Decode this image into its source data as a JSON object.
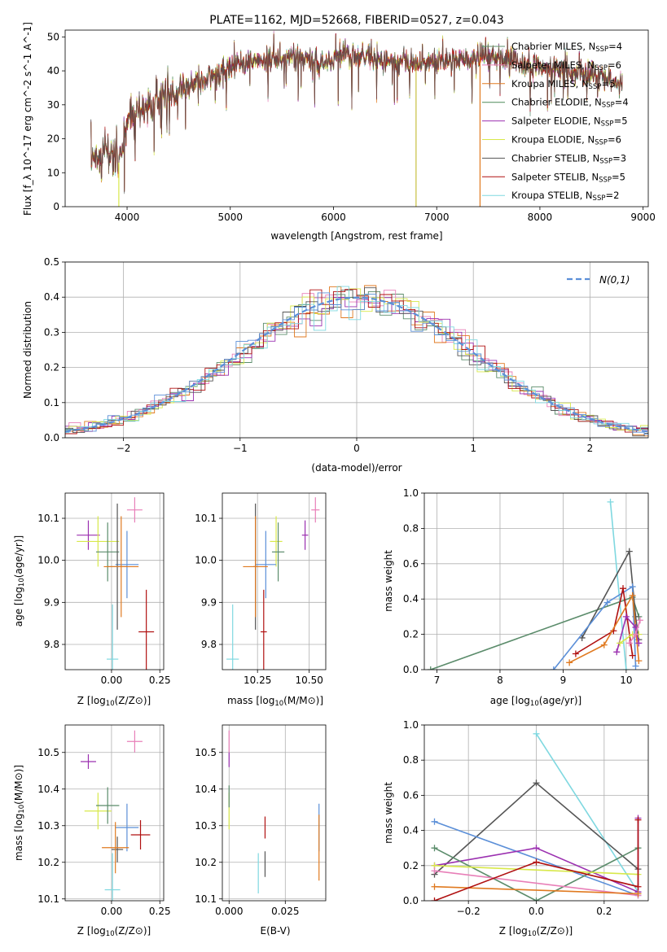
{
  "chart_data": [
    {
      "type": "line",
      "title": "PLATE=1162, MJD=52668, FIBERID=0527, z=0.043",
      "xlabel": "wavelength [Angstrom, rest frame]",
      "ylabel": "Flux [f_λ 10^-17 erg cm^-2 s^-1 A^-1]",
      "xlim": [
        3400,
        9050
      ],
      "ylim": [
        0,
        52
      ],
      "xticks": [
        4000,
        5000,
        6000,
        7000,
        8000,
        9000
      ],
      "yticks": [
        0,
        10,
        20,
        30,
        40,
        50
      ],
      "legend": "top-right",
      "continuum": {
        "x": [
          3650,
          3800,
          3920,
          4000,
          4100,
          4300,
          4500,
          4700,
          4900,
          5100,
          5300,
          5500,
          5700,
          5900,
          6100,
          6300,
          6500,
          6700,
          6900,
          7100,
          7300,
          7500,
          7700,
          7900,
          8100,
          8300,
          8500,
          8800
        ],
        "y": [
          14,
          17,
          13,
          25,
          28,
          31,
          34,
          37,
          39,
          42,
          43,
          44,
          44,
          42,
          45,
          44,
          43,
          42,
          42,
          43,
          43,
          45,
          43,
          42,
          41,
          40,
          39,
          36
        ]
      },
      "series": [
        {
          "name": "Chabrier MILES, N_SSP=4",
          "color": "#5b8c6b"
        },
        {
          "name": "Salpeter MILES, N_SSP=6",
          "color": "#e87fb8"
        },
        {
          "name": "Kroupa MILES, N_SSP=5",
          "color": "#e07a20"
        },
        {
          "name": "Chabrier ELODIE, N_SSP=4",
          "color": "#4f8a58"
        },
        {
          "name": "Salpeter ELODIE, N_SSP=5",
          "color": "#9b30b0"
        },
        {
          "name": "Kroupa ELODIE, N_SSP=6",
          "color": "#d8e84a"
        },
        {
          "name": "Chabrier STELIB, N_SSP=3",
          "color": "#555555"
        },
        {
          "name": "Salpeter STELIB, N_SSP=5",
          "color": "#b01010"
        },
        {
          "name": "Kroupa STELIB, N_SSP=2",
          "color": "#7fd8e0"
        }
      ],
      "dropouts": [
        {
          "x": 3920,
          "color": "#d8e84a"
        },
        {
          "x": 6800,
          "color": "#c8c040"
        },
        {
          "x": 7420,
          "color": "#e07a20"
        }
      ]
    },
    {
      "type": "histogram",
      "xlabel": "(data-model)/error",
      "ylabel": "Normed distribution",
      "xlim": [
        -2.5,
        2.5
      ],
      "ylim": [
        0,
        0.5
      ],
      "xticks": [
        -2,
        -1,
        0,
        1,
        2
      ],
      "yticks": [
        0.0,
        0.1,
        0.2,
        0.3,
        0.4,
        0.5
      ],
      "grid": true,
      "bin_width": 0.1,
      "reference_curve": {
        "label": "N(0,1)",
        "color": "#5b8fd8",
        "style": "dashed"
      },
      "legend": "top-right",
      "series_colors": [
        "#5b8c6b",
        "#e87fb8",
        "#e07a20",
        "#9b30b0",
        "#d8e84a",
        "#555555",
        "#b01010",
        "#7fd8e0",
        "#5b8fd8"
      ]
    },
    {
      "type": "scatter",
      "xlabel": "Z [log10(Z/Z⊙)]",
      "ylabel": "age  [log10(age/yr)]",
      "xlim": [
        -0.24,
        0.27
      ],
      "ylim": [
        9.74,
        10.16
      ],
      "xticks": [
        0.0,
        0.25
      ],
      "xticklabels": [
        "0.00",
        "0.25"
      ],
      "yticks": [
        9.8,
        9.9,
        10.0,
        10.1
      ],
      "grid": true,
      "points": [
        {
          "x": 0.12,
          "y": 10.12,
          "xerr": 0.04,
          "yerr": 0.03,
          "color": "#e87fb8"
        },
        {
          "x": -0.12,
          "y": 10.06,
          "xerr": 0.06,
          "yerr": 0.035,
          "color": "#9b30b0"
        },
        {
          "x": -0.07,
          "y": 10.045,
          "xerr": 0.11,
          "yerr": 0.06,
          "color": "#d8e84a"
        },
        {
          "x": -0.02,
          "y": 10.02,
          "xerr": 0.06,
          "yerr": 0.07,
          "color": "#5b8c6b"
        },
        {
          "x": 0.08,
          "y": 9.99,
          "xerr": 0.06,
          "yerr": 0.08,
          "color": "#5b8fd8"
        },
        {
          "x": 0.03,
          "y": 9.985,
          "xerr": 0.05,
          "yerr": 0.15,
          "color": "#555555"
        },
        {
          "x": 0.05,
          "y": 9.985,
          "xerr": 0.09,
          "yerr": 0.12,
          "color": "#e07a20"
        },
        {
          "x": 0.18,
          "y": 9.83,
          "xerr": 0.04,
          "yerr": 0.1,
          "color": "#b01010"
        },
        {
          "x": 0.005,
          "y": 9.765,
          "xerr": 0.03,
          "yerr": 0.13,
          "color": "#7fd8e0"
        }
      ]
    },
    {
      "type": "scatter",
      "xlabel": "mass [log10(M/M⊙)]",
      "ylabel": "",
      "xlim": [
        10.08,
        10.58
      ],
      "ylim": [
        9.74,
        10.16
      ],
      "xticks": [
        10.25,
        10.5
      ],
      "xticklabels": [
        "10.25",
        "10.50"
      ],
      "yticks": [
        9.8,
        9.9,
        10.0,
        10.1
      ],
      "grid": true,
      "points": [
        {
          "x": 10.53,
          "y": 10.12,
          "xerr": 0.02,
          "yerr": 0.03,
          "color": "#e87fb8"
        },
        {
          "x": 10.48,
          "y": 10.06,
          "xerr": 0.015,
          "yerr": 0.035,
          "color": "#9b30b0"
        },
        {
          "x": 10.34,
          "y": 10.045,
          "xerr": 0.03,
          "yerr": 0.06,
          "color": "#d8e84a"
        },
        {
          "x": 10.35,
          "y": 10.02,
          "xerr": 0.03,
          "yerr": 0.07,
          "color": "#5b8c6b"
        },
        {
          "x": 10.29,
          "y": 9.99,
          "xerr": 0.05,
          "yerr": 0.08,
          "color": "#5b8fd8"
        },
        {
          "x": 10.24,
          "y": 9.985,
          "xerr": 0.01,
          "yerr": 0.15,
          "color": "#555555"
        },
        {
          "x": 10.24,
          "y": 9.985,
          "xerr": 0.06,
          "yerr": 0.12,
          "color": "#e07a20"
        },
        {
          "x": 10.28,
          "y": 9.83,
          "xerr": 0.015,
          "yerr": 0.1,
          "color": "#b01010"
        },
        {
          "x": 10.13,
          "y": 9.765,
          "xerr": 0.03,
          "yerr": 0.13,
          "color": "#7fd8e0"
        }
      ]
    },
    {
      "type": "line",
      "xlabel": "age  [log10(age/yr)]",
      "ylabel": "mass weight",
      "xlim": [
        6.8,
        10.35
      ],
      "ylim": [
        0,
        1.0
      ],
      "xticks": [
        7,
        8,
        9,
        10
      ],
      "yticks": [
        0.0,
        0.2,
        0.4,
        0.6,
        0.8,
        1.0
      ],
      "grid": true,
      "series": [
        {
          "color": "#5b8c6b",
          "x": [
            6.9,
            10.1,
            10.2
          ],
          "y": [
            0.0,
            0.41,
            0.3
          ]
        },
        {
          "color": "#7fd8e0",
          "x": [
            10.0,
            9.75
          ],
          "y": [
            0.0,
            0.95
          ]
        },
        {
          "color": "#555555",
          "x": [
            9.3,
            10.05,
            10.15,
            10.2
          ],
          "y": [
            0.18,
            0.67,
            0.3,
            0.17
          ]
        },
        {
          "color": "#5b8fd8",
          "x": [
            8.85,
            9.7,
            10.1,
            10.15
          ],
          "y": [
            0.0,
            0.38,
            0.47,
            0.02
          ]
        },
        {
          "color": "#b01010",
          "x": [
            9.2,
            9.8,
            9.95,
            10.1
          ],
          "y": [
            0.09,
            0.22,
            0.46,
            0.08
          ]
        },
        {
          "color": "#e07a20",
          "x": [
            9.1,
            9.65,
            10.1,
            10.2
          ],
          "y": [
            0.04,
            0.14,
            0.42,
            0.05
          ]
        },
        {
          "color": "#9b30b0",
          "x": [
            9.85,
            10.0,
            10.15,
            10.2
          ],
          "y": [
            0.1,
            0.3,
            0.24,
            0.15
          ]
        },
        {
          "color": "#d8e84a",
          "x": [
            9.9,
            10.1,
            10.2
          ],
          "y": [
            0.15,
            0.2,
            0.2
          ]
        },
        {
          "color": "#e87fb8",
          "x": [
            10.05,
            10.15,
            10.22
          ],
          "y": [
            0.15,
            0.2,
            0.28
          ]
        }
      ]
    },
    {
      "type": "scatter",
      "xlabel": "Z [log10(Z/Z⊙)]",
      "ylabel": "mass [log10(M/M⊙)]",
      "xlim": [
        -0.24,
        0.27
      ],
      "ylim": [
        10.095,
        10.575
      ],
      "xticks": [
        0.0,
        0.25
      ],
      "xticklabels": [
        "0.00",
        "0.25"
      ],
      "yticks": [
        10.1,
        10.2,
        10.3,
        10.4,
        10.5
      ],
      "grid": true,
      "points": [
        {
          "x": 0.12,
          "y": 10.53,
          "xerr": 0.04,
          "yerr": 0.03,
          "color": "#e87fb8"
        },
        {
          "x": -0.12,
          "y": 10.475,
          "xerr": 0.04,
          "yerr": 0.02,
          "color": "#9b30b0"
        },
        {
          "x": -0.07,
          "y": 10.34,
          "xerr": 0.07,
          "yerr": 0.05,
          "color": "#d8e84a"
        },
        {
          "x": -0.02,
          "y": 10.355,
          "xerr": 0.06,
          "yerr": 0.05,
          "color": "#5b8c6b"
        },
        {
          "x": 0.08,
          "y": 10.295,
          "xerr": 0.06,
          "yerr": 0.065,
          "color": "#5b8fd8"
        },
        {
          "x": 0.03,
          "y": 10.235,
          "xerr": 0.03,
          "yerr": 0.035,
          "color": "#555555"
        },
        {
          "x": 0.02,
          "y": 10.24,
          "xerr": 0.07,
          "yerr": 0.07,
          "color": "#e07a20"
        },
        {
          "x": 0.15,
          "y": 10.275,
          "xerr": 0.05,
          "yerr": 0.04,
          "color": "#b01010"
        },
        {
          "x": 0.005,
          "y": 10.125,
          "xerr": 0.04,
          "yerr": 0.1,
          "color": "#7fd8e0"
        }
      ]
    },
    {
      "type": "scatter",
      "xlabel": "E(B-V)",
      "ylabel": "",
      "xlim": [
        -0.003,
        0.043
      ],
      "ylim": [
        10.095,
        10.575
      ],
      "xticks": [
        0.0,
        0.025
      ],
      "xticklabels": [
        "0.000",
        "0.025"
      ],
      "yticks": [
        10.1,
        10.2,
        10.3,
        10.4,
        10.5
      ],
      "grid": true,
      "points": [
        {
          "x": 0.0,
          "y": 10.53,
          "yerr": 0.03,
          "color": "#e87fb8"
        },
        {
          "x": 0.0,
          "y": 10.48,
          "yerr": 0.02,
          "color": "#9b30b0"
        },
        {
          "x": 0.0,
          "y": 10.34,
          "yerr": 0.05,
          "color": "#d8e84a"
        },
        {
          "x": 0.0,
          "y": 10.38,
          "yerr": 0.03,
          "color": "#5b8c6b"
        },
        {
          "x": 0.04,
          "y": 10.295,
          "yerr": 0.065,
          "color": "#5b8fd8"
        },
        {
          "x": 0.016,
          "y": 10.195,
          "yerr": 0.035,
          "color": "#555555"
        },
        {
          "x": 0.04,
          "y": 10.24,
          "yerr": 0.09,
          "color": "#e07a20"
        },
        {
          "x": 0.016,
          "y": 10.295,
          "yerr": 0.03,
          "color": "#b01010"
        },
        {
          "x": 0.013,
          "y": 10.17,
          "yerr": 0.055,
          "color": "#7fd8e0"
        }
      ]
    },
    {
      "type": "line",
      "xlabel": "Z [log10(Z/Z⊙)]",
      "ylabel": "mass weight",
      "xlim": [
        -0.33,
        0.33
      ],
      "ylim": [
        0,
        1.0
      ],
      "xticks": [
        -0.2,
        0.0,
        0.2
      ],
      "xticklabels": [
        "−0.2",
        "0.0",
        "0.2"
      ],
      "yticks": [
        0.0,
        0.2,
        0.4,
        0.6,
        0.8,
        1.0
      ],
      "grid": true,
      "series": [
        {
          "color": "#7fd8e0",
          "x": [
            0.0,
            0.3
          ],
          "y": [
            0.95,
            0.05
          ]
        },
        {
          "color": "#555555",
          "x": [
            -0.3,
            0.0,
            0.3
          ],
          "y": [
            0.15,
            0.67,
            0.18
          ]
        },
        {
          "color": "#5b8fd8",
          "x": [
            -0.3,
            0.3
          ],
          "y": [
            0.45,
            0.03
          ]
        },
        {
          "color": "#9b30b0",
          "x": [
            -0.3,
            0.0,
            0.3,
            0.3
          ],
          "y": [
            0.2,
            0.3,
            0.05,
            0.47
          ]
        },
        {
          "color": "#5b8c6b",
          "x": [
            -0.3,
            0.0,
            0.3
          ],
          "y": [
            0.3,
            0.0,
            0.3
          ]
        },
        {
          "color": "#d8e84a",
          "x": [
            -0.3,
            0.3
          ],
          "y": [
            0.2,
            0.15
          ]
        },
        {
          "color": "#e87fb8",
          "x": [
            -0.3,
            0.3
          ],
          "y": [
            0.17,
            0.03
          ]
        },
        {
          "color": "#e07a20",
          "x": [
            -0.3,
            0.3
          ],
          "y": [
            0.08,
            0.04
          ]
        },
        {
          "color": "#b01010",
          "x": [
            -0.3,
            0.0,
            0.3,
            0.3
          ],
          "y": [
            0.0,
            0.22,
            0.08,
            0.46
          ]
        }
      ]
    }
  ]
}
